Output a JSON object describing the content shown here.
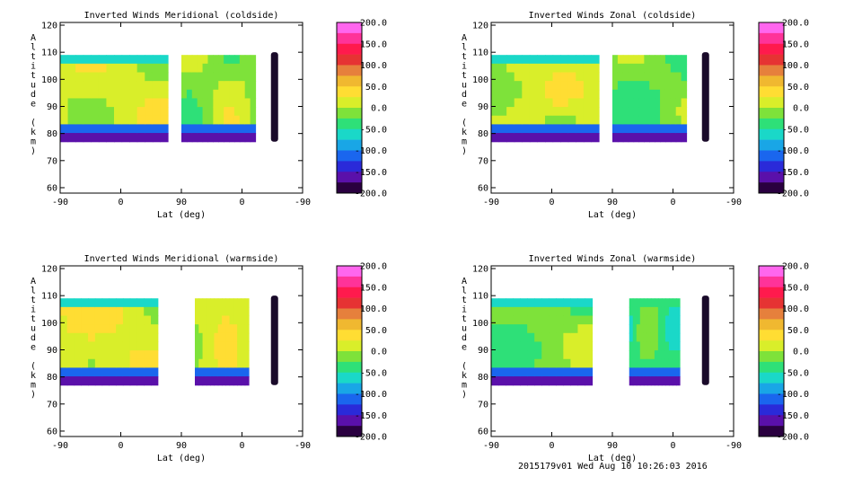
{
  "colorbar": {
    "labels": [
      "200.0",
      "150.0",
      "100.0",
      "50.0",
      "0.0",
      "-50.0",
      "-100.0",
      "-150.0",
      "-200.0"
    ],
    "colors": [
      "#ff66ee",
      "#ff3399",
      "#ff1a4d",
      "#e63333",
      "#e6803c",
      "#f0b830",
      "#ffdd33",
      "#d9ee2a",
      "#7ee23a",
      "#2ee078",
      "#1ad8c8",
      "#19a6e6",
      "#1a66ee",
      "#2a2ad9",
      "#5a10aa",
      "#2a0040"
    ]
  },
  "footer": "2015179v01 Wed Aug 10 10:26:03 2016",
  "chart_data": [
    {
      "type": "heatmap",
      "title": "Inverted Winds Meridional (coldside)",
      "xlabel": "Lat (deg)",
      "ylabel": "Altitude (km)",
      "xticks": [
        "-90",
        "0",
        "90",
        "0",
        "-90"
      ],
      "yticks": [
        "60",
        "70",
        "80",
        "90",
        "100",
        "110",
        "120"
      ],
      "ylim": [
        58,
        121
      ],
      "zlim": [
        -200,
        200
      ],
      "blocks": [
        {
          "x0": -90,
          "x1": 70,
          "base": 10,
          "amp": 25,
          "fx": 1.6,
          "fy": 1.3,
          "ph": 0.4
        },
        {
          "x0": 90,
          "x1": 200,
          "base": -5,
          "amp": 35,
          "fx": 1.8,
          "fy": 1.1,
          "ph": 1.2
        }
      ]
    },
    {
      "type": "heatmap",
      "title": "Inverted Winds Zonal (coldside)",
      "xlabel": "Lat (deg)",
      "ylabel": "Altitude (km)",
      "xticks": [
        "-90",
        "0",
        "90",
        "0",
        "-90"
      ],
      "yticks": [
        "60",
        "70",
        "80",
        "90",
        "100",
        "110",
        "120"
      ],
      "ylim": [
        58,
        121
      ],
      "zlim": [
        -200,
        200
      ],
      "blocks": [
        {
          "x0": -90,
          "x1": 70,
          "base": 5,
          "amp": 30,
          "fx": 1.4,
          "fy": 1.6,
          "ph": 2.0
        },
        {
          "x0": 90,
          "x1": 200,
          "base": -20,
          "amp": 30,
          "fx": 1.2,
          "fy": 1.4,
          "ph": 0.7
        }
      ]
    },
    {
      "type": "heatmap",
      "title": "Inverted Winds Meridional (warmside)",
      "xlabel": "Lat (deg)",
      "ylabel": "Altitude (km)",
      "xticks": [
        "-90",
        "0",
        "90",
        "0",
        "-90"
      ],
      "yticks": [
        "60",
        "70",
        "80",
        "90",
        "100",
        "110",
        "120"
      ],
      "ylim": [
        58,
        121
      ],
      "zlim": [
        -200,
        200
      ],
      "blocks": [
        {
          "x0": -90,
          "x1": 55,
          "base": 20,
          "amp": 30,
          "fx": 1.5,
          "fy": 1.0,
          "ph": 0.2
        },
        {
          "x0": 110,
          "x1": 190,
          "base": 15,
          "amp": 25,
          "fx": 1.7,
          "fy": 1.2,
          "ph": 1.8
        }
      ]
    },
    {
      "type": "heatmap",
      "title": "Inverted Winds Zonal (warmside)",
      "xlabel": "Lat (deg)",
      "ylabel": "Altitude (km)",
      "xticks": [
        "-90",
        "0",
        "90",
        "0",
        "-90"
      ],
      "yticks": [
        "60",
        "70",
        "80",
        "90",
        "100",
        "110",
        "120"
      ],
      "ylim": [
        58,
        121
      ],
      "zlim": [
        -200,
        200
      ],
      "blocks": [
        {
          "x0": -90,
          "x1": 60,
          "base": -15,
          "amp": 30,
          "fx": 1.3,
          "fy": 1.5,
          "ph": 1.0
        },
        {
          "x0": 115,
          "x1": 190,
          "base": -35,
          "amp": 35,
          "fx": 1.9,
          "fy": 1.3,
          "ph": 2.6
        }
      ]
    }
  ]
}
